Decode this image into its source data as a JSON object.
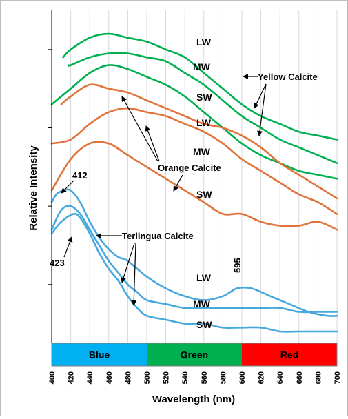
{
  "chart_data": {
    "type": "line",
    "xlabel": "Wavelength (nm)",
    "ylabel": "Relative Intensity",
    "xlim": [
      400,
      700
    ],
    "x_ticks": [
      "400",
      "420",
      "440",
      "460",
      "480",
      "500",
      "520",
      "540",
      "560",
      "580",
      "600",
      "620",
      "640",
      "660",
      "680",
      "700"
    ],
    "grid": "vertical gridlines every 20 nm",
    "color_bands": [
      {
        "label": "Blue",
        "from": 400,
        "to": 500,
        "color": "#00b0f0"
      },
      {
        "label": "Green",
        "from": 500,
        "to": 600,
        "color": "#00b050"
      },
      {
        "label": "Red",
        "from": 600,
        "to": 700,
        "color": "#ff0000"
      }
    ],
    "colors": {
      "yellow_calcite": "#00b050",
      "orange_calcite": "#e0733a",
      "terlingua_calcite": "#46a8dc"
    },
    "series": [
      {
        "group": "Yellow Calcite",
        "x": [
          412,
          420,
          440,
          460,
          480,
          500,
          520,
          540,
          560,
          580,
          600,
          620,
          640,
          660,
          680,
          700
        ],
        "y": [
          8.8,
          9.0,
          9.3,
          9.4,
          9.3,
          9.2,
          9.0,
          8.8,
          8.4,
          8.0,
          7.6,
          7.3,
          7.1,
          6.9,
          6.8,
          6.7
        ]
      },
      {
        "group": "Yellow Calcite",
        "x": [
          418,
          420,
          440,
          460,
          480,
          500,
          520,
          540,
          560,
          580,
          600,
          620,
          640,
          660,
          680,
          700
        ],
        "y": [
          8.6,
          8.6,
          8.8,
          8.9,
          8.9,
          8.8,
          8.7,
          8.4,
          8.1,
          7.7,
          7.3,
          7.0,
          6.7,
          6.5,
          6.3,
          6.1
        ]
      },
      {
        "group": "Yellow Calcite",
        "x": [
          400,
          420,
          440,
          460,
          480,
          500,
          520,
          540,
          560,
          580,
          600,
          620,
          640,
          660,
          680,
          700
        ],
        "y": [
          7.6,
          8.0,
          8.4,
          8.6,
          8.5,
          8.3,
          8.1,
          7.8,
          7.4,
          7.0,
          6.6,
          6.3,
          6.1,
          5.9,
          5.8,
          5.7
        ]
      },
      {
        "group": "Orange Calcite",
        "x": [
          410,
          420,
          440,
          460,
          480,
          500,
          520,
          540,
          560,
          580,
          600,
          620,
          640,
          660,
          680,
          700
        ],
        "y": [
          7.6,
          7.8,
          8.1,
          8.0,
          7.9,
          7.7,
          7.5,
          7.3,
          7.1,
          7.0,
          6.8,
          6.5,
          6.1,
          5.8,
          5.5,
          5.2
        ]
      },
      {
        "group": "Orange Calcite",
        "x": [
          400,
          420,
          440,
          460,
          480,
          500,
          520,
          540,
          560,
          580,
          600,
          620,
          640,
          660,
          680,
          700
        ],
        "y": [
          6.6,
          6.7,
          7.1,
          7.4,
          7.5,
          7.4,
          7.3,
          7.1,
          6.9,
          6.6,
          6.2,
          5.9,
          5.6,
          5.3,
          5.1,
          4.8
        ]
      },
      {
        "group": "Orange Calcite",
        "x": [
          400,
          420,
          440,
          460,
          480,
          500,
          520,
          540,
          560,
          580,
          600,
          620,
          640,
          660,
          680,
          700
        ],
        "y": [
          5.4,
          6.2,
          6.6,
          6.6,
          6.3,
          6.0,
          5.7,
          5.4,
          5.1,
          4.8,
          4.8,
          4.6,
          4.5,
          4.5,
          4.6,
          4.4
        ]
      },
      {
        "group": "Terlingua Calcite",
        "x": [
          400,
          405,
          412,
          420,
          430,
          440,
          450,
          460,
          470,
          480,
          500,
          520,
          540,
          560,
          580,
          595,
          610,
          630,
          650,
          670,
          690,
          700
        ],
        "y": [
          5.1,
          5.3,
          5.4,
          5.4,
          5.1,
          4.6,
          4.2,
          3.9,
          3.7,
          3.6,
          3.2,
          2.9,
          2.7,
          2.6,
          2.7,
          2.9,
          2.9,
          2.7,
          2.5,
          2.3,
          2.2,
          2.2
        ]
      },
      {
        "group": "Terlingua Calcite",
        "x": [
          400,
          410,
          420,
          430,
          440,
          450,
          460,
          470,
          480,
          490,
          500,
          520,
          540,
          560,
          580,
          600,
          620,
          640,
          660,
          680,
          700
        ],
        "y": [
          4.4,
          4.9,
          5.0,
          4.8,
          4.4,
          4.0,
          3.6,
          3.3,
          3.0,
          2.8,
          2.6,
          2.5,
          2.4,
          2.4,
          2.4,
          2.4,
          2.4,
          2.4,
          2.3,
          2.3,
          2.3
        ]
      },
      {
        "group": "Terlingua Calcite",
        "x": [
          400,
          410,
          423,
          430,
          440,
          450,
          460,
          470,
          480,
          490,
          500,
          520,
          540,
          560,
          580,
          600,
          620,
          640,
          660,
          680,
          700
        ],
        "y": [
          4.3,
          4.6,
          4.8,
          4.7,
          4.3,
          3.8,
          3.4,
          3.1,
          2.7,
          2.4,
          2.2,
          2.1,
          2.0,
          2.0,
          1.9,
          1.9,
          1.9,
          1.8,
          1.8,
          1.8,
          1.8
        ]
      }
    ],
    "annotations": {
      "yellow_calcite": "Yellow Calcite",
      "orange_calcite": "Orange Calcite",
      "terlingua_calcite": "Terlingua Calcite",
      "yellow_lw": "LW",
      "yellow_mw": "MW",
      "yellow_sw": "SW",
      "orange_lw": "LW",
      "orange_mw": "MW",
      "orange_sw": "SW",
      "terlingua_lw": "LW",
      "terlingua_mw": "MW",
      "terlingua_sw": "SW",
      "peak_412": "412",
      "peak_423": "423",
      "peak_595": "595"
    }
  }
}
